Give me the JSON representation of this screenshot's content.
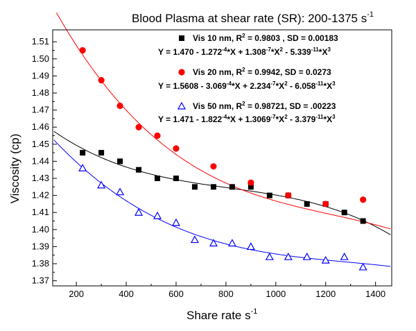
{
  "chart_data": {
    "type": "scatter",
    "title": "Blood Plasma at shear rate (SR): 200-1375 s",
    "title_sup": "-1",
    "xlabel": "Share rate s",
    "xlabel_sup": "-1",
    "ylabel": "Viscosity (cp)",
    "xlim": [
      105,
      1465
    ],
    "ylim": [
      1.367,
      1.517
    ],
    "x_ticks": [
      200,
      400,
      600,
      800,
      1000,
      1200,
      1400
    ],
    "y_ticks": [
      1.37,
      1.38,
      1.39,
      1.4,
      1.41,
      1.42,
      1.43,
      1.44,
      1.45,
      1.46,
      1.47,
      1.48,
      1.49,
      1.5,
      1.51
    ],
    "series": [
      {
        "name": "Vis 10 nm",
        "marker": "square",
        "color": "#000000",
        "x": [
          225,
          300,
          375,
          450,
          525,
          600,
          675,
          750,
          825,
          900,
          975,
          1050,
          1125,
          1200,
          1275,
          1350
        ],
        "y": [
          1.445,
          1.445,
          1.44,
          1.435,
          1.43,
          1.43,
          1.425,
          1.425,
          1.425,
          1.425,
          1.42,
          1.42,
          1.415,
          1.415,
          1.41,
          1.405
        ],
        "fit": {
          "c0": 1.47,
          "c1": -0.0001272,
          "c2": 1.308e-07,
          "c3": -5.339e-11,
          "x_range": [
            110,
            1460
          ]
        },
        "legend": {
          "name": "Vis 10 nm",
          "stats": ", R",
          "r2_sup": "2",
          "r2_value": " = 0.9803 , SD = 0.00183",
          "eq_parts": [
            {
              "t": "Y = 1.470 - 1.272"
            },
            {
              "t": "-4",
              "sup": true
            },
            {
              "t": "*X + 1.308"
            },
            {
              "t": "-7",
              "sup": true
            },
            {
              "t": "*X"
            },
            {
              "t": "2",
              "sup": true
            },
            {
              "t": " - 5.339"
            },
            {
              "t": "-11",
              "sup": true
            },
            {
              "t": "*X"
            },
            {
              "t": "3",
              "sup": true
            }
          ]
        }
      },
      {
        "name": "Vis 20 nm",
        "marker": "circle",
        "color": "#ff0000",
        "x": [
          225,
          300,
          375,
          450,
          525,
          600,
          750,
          900,
          1050,
          1200,
          1350
        ],
        "y": [
          1.505,
          1.4875,
          1.4725,
          1.46,
          1.455,
          1.4475,
          1.437,
          1.4275,
          1.42,
          1.415,
          1.4175
        ],
        "fit": {
          "c0": 1.5608,
          "c1": -0.0003069,
          "c2": 2.234e-07,
          "c3": -6.058e-11,
          "x_range": [
            120,
            1460
          ]
        },
        "legend": {
          "name": "Vis 20 nm",
          "stats": ", R",
          "r2_sup": "2",
          "r2_value": " = 0.9942, SD = 0.0273",
          "eq_parts": [
            {
              "t": "Y = 1.5608 - 3.069"
            },
            {
              "t": "-4",
              "sup": true
            },
            {
              "t": "*X + 2.234"
            },
            {
              "t": "-7",
              "sup": true
            },
            {
              "t": "*X"
            },
            {
              "t": "2",
              "sup": true
            },
            {
              "t": " - 6.058"
            },
            {
              "t": "-11",
              "sup": true
            },
            {
              "t": "*X"
            },
            {
              "t": "3",
              "sup": true
            }
          ]
        }
      },
      {
        "name": "Vis 50 nm",
        "marker": "triangle",
        "color": "#0000ff",
        "x": [
          225,
          300,
          375,
          450,
          525,
          600,
          675,
          750,
          825,
          900,
          975,
          1050,
          1125,
          1200,
          1275,
          1350
        ],
        "y": [
          1.436,
          1.426,
          1.422,
          1.41,
          1.408,
          1.404,
          1.394,
          1.392,
          1.392,
          1.39,
          1.384,
          1.384,
          1.384,
          1.382,
          1.384,
          1.378
        ],
        "fit": {
          "c0": 1.471,
          "c1": -0.0001822,
          "c2": 1.3069e-07,
          "c3": -3.379e-11,
          "x_range": [
            110,
            1460
          ]
        },
        "legend": {
          "name": "Vis 50 nm",
          "stats": ", R",
          "r2_sup": "2",
          "r2_value": " = 0.98721, SD = .00223",
          "eq_parts": [
            {
              "t": "Y = 1.471 - 1.822"
            },
            {
              "t": "-4",
              "sup": true
            },
            {
              "t": "*X + 1.3069"
            },
            {
              "t": "-7",
              "sup": true
            },
            {
              "t": "*X"
            },
            {
              "t": "2",
              "sup": true
            },
            {
              "t": " - 3.379"
            },
            {
              "t": "-11",
              "sup": true
            },
            {
              "t": "*X"
            },
            {
              "t": "3",
              "sup": true
            }
          ]
        }
      }
    ],
    "grid": false,
    "legend_position": "top-right"
  }
}
